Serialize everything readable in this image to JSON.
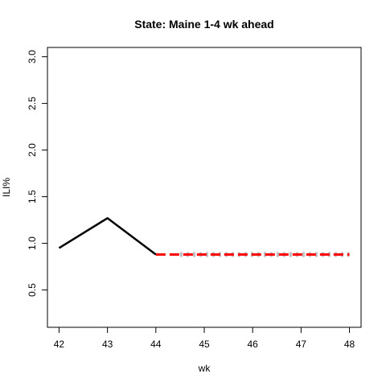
{
  "chart_data": {
    "type": "line",
    "title": "State: Maine 1-4 wk ahead",
    "xlabel": "wk",
    "ylabel": "ILI%",
    "xlim": [
      42,
      48
    ],
    "ylim": [
      0.1,
      3.1
    ],
    "x_ticks": [
      42,
      43,
      44,
      45,
      46,
      47,
      48
    ],
    "y_ticks": [
      0.5,
      1.0,
      1.5,
      2.0,
      2.5,
      3.0
    ],
    "y_tick_labels": [
      "0.5",
      "1.0",
      "1.5",
      "2.0",
      "2.5",
      "3.0"
    ],
    "grid": false,
    "series": [
      {
        "role": "observed",
        "color": "#000000",
        "style": "solid",
        "x": [
          42,
          43,
          44
        ],
        "y": [
          0.95,
          1.27,
          0.88
        ]
      },
      {
        "role": "forecast",
        "color": "#ff0000",
        "style": "dashed",
        "x": [
          44,
          45,
          46,
          47,
          48
        ],
        "y": [
          0.88,
          0.88,
          0.88,
          0.88,
          0.88
        ]
      },
      {
        "role": "forecast-samples",
        "color": "#bebebe",
        "style": "dotted",
        "x": [
          44.5,
          45,
          46,
          47,
          48
        ],
        "y": [
          0.88,
          0.88,
          0.88,
          0.88,
          0.88
        ]
      }
    ]
  }
}
